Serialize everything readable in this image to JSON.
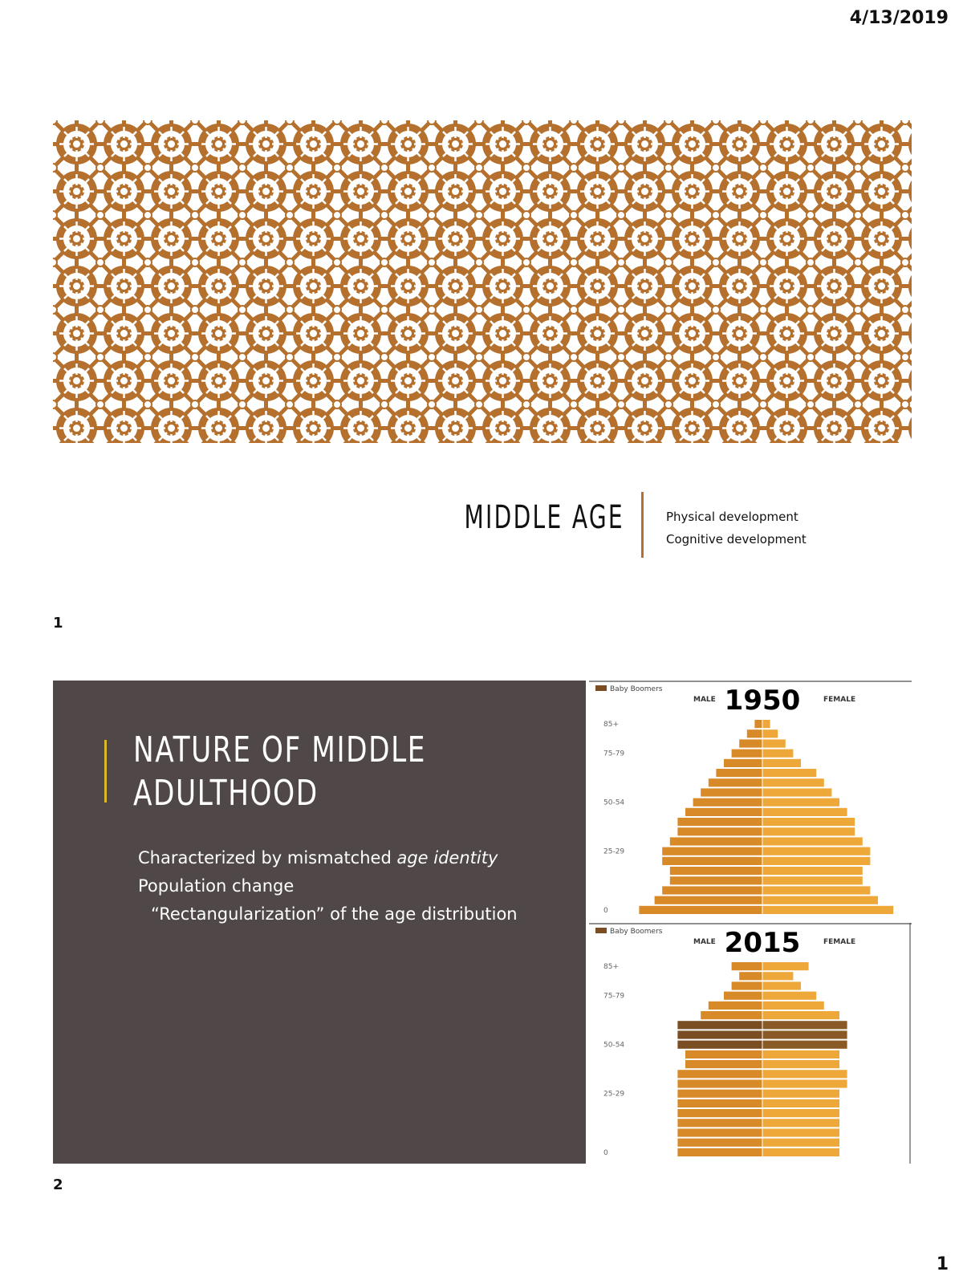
{
  "header": {
    "date": "4/13/2019"
  },
  "footer": {
    "page_number": "1"
  },
  "slide1": {
    "number": "1",
    "title": "MIDDLE AGE",
    "subtitle_lines": [
      "Physical development",
      "Cognitive development"
    ],
    "colors": {
      "pattern": "#b4702c",
      "divider": "#b4702c"
    }
  },
  "slide2": {
    "number": "2",
    "title_lines": [
      "NATURE OF MIDDLE",
      "ADULTHOOD"
    ],
    "bullet1_prefix": "Characterized by mismatched ",
    "bullet1_emph": "age identity",
    "bullet2": "Population change",
    "bullet3": "“Rectangularization” of the age distribution",
    "colors": {
      "background": "#504848",
      "accent": "#d9b92a",
      "male": "#d98a28",
      "female": "#eea83a",
      "boomer": "#7a4e22"
    }
  },
  "chart_data": [
    {
      "type": "bar",
      "title": "1950",
      "legend": "Baby Boomers",
      "left_label": "MALE",
      "right_label": "FEMALE",
      "y_tick_labels": [
        "85+",
        "75-79",
        "50-54",
        "25-29",
        "0"
      ],
      "male": [
        1,
        2,
        3,
        4,
        5,
        6,
        7,
        8,
        9,
        10,
        11,
        11,
        12,
        13,
        13,
        12,
        12,
        13,
        14,
        16
      ],
      "female": [
        1,
        2,
        3,
        4,
        5,
        7,
        8,
        9,
        10,
        11,
        12,
        12,
        13,
        14,
        14,
        13,
        13,
        14,
        15,
        17
      ]
    },
    {
      "type": "bar",
      "title": "2015",
      "legend": "Baby Boomers",
      "left_label": "MALE",
      "right_label": "FEMALE",
      "y_tick_labels": [
        "85+",
        "75-79",
        "50-54",
        "25-29",
        "0"
      ],
      "male": [
        4,
        3,
        4,
        5,
        7,
        8,
        11,
        11,
        11,
        10,
        10,
        11,
        11,
        11,
        11,
        11,
        11,
        11,
        11,
        11
      ],
      "female": [
        6,
        4,
        5,
        7,
        8,
        10,
        11,
        11,
        11,
        10,
        10,
        11,
        11,
        10,
        10,
        10,
        10,
        10,
        10,
        10
      ],
      "boomer_rows": [
        6,
        7,
        8
      ]
    }
  ]
}
